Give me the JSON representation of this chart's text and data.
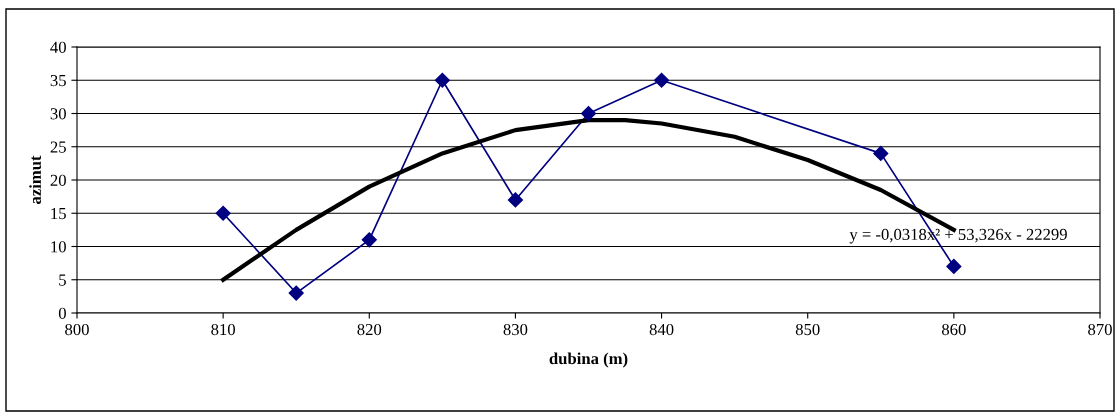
{
  "chart_data": {
    "type": "line",
    "xlabel": "dubina (m)",
    "ylabel": "azimut",
    "xlim": [
      800,
      870
    ],
    "xticks": [
      800,
      810,
      820,
      830,
      840,
      850,
      860,
      870
    ],
    "ylim": [
      0,
      40
    ],
    "yticks": [
      0,
      5,
      10,
      15,
      20,
      25,
      30,
      35,
      40
    ],
    "grid": "y",
    "legend": false,
    "series": [
      {
        "color": "#000080",
        "marker": "diamond",
        "x": [
          810,
          815,
          820,
          825,
          830,
          835,
          840,
          855,
          860
        ],
        "values": [
          15,
          3,
          11,
          35,
          17,
          30,
          35,
          24,
          7
        ]
      },
      {
        "color": "#000000",
        "marker": "none",
        "x": [
          810,
          815,
          820,
          825,
          830,
          835,
          837.5,
          840,
          845,
          850,
          855,
          860
        ],
        "values": [
          5,
          12.5,
          19,
          24,
          27.5,
          29,
          29,
          28.5,
          26.5,
          23,
          18.5,
          12.5
        ]
      }
    ],
    "annotations": [
      "y = -0,0318x² + 53,326x - 22299"
    ]
  }
}
